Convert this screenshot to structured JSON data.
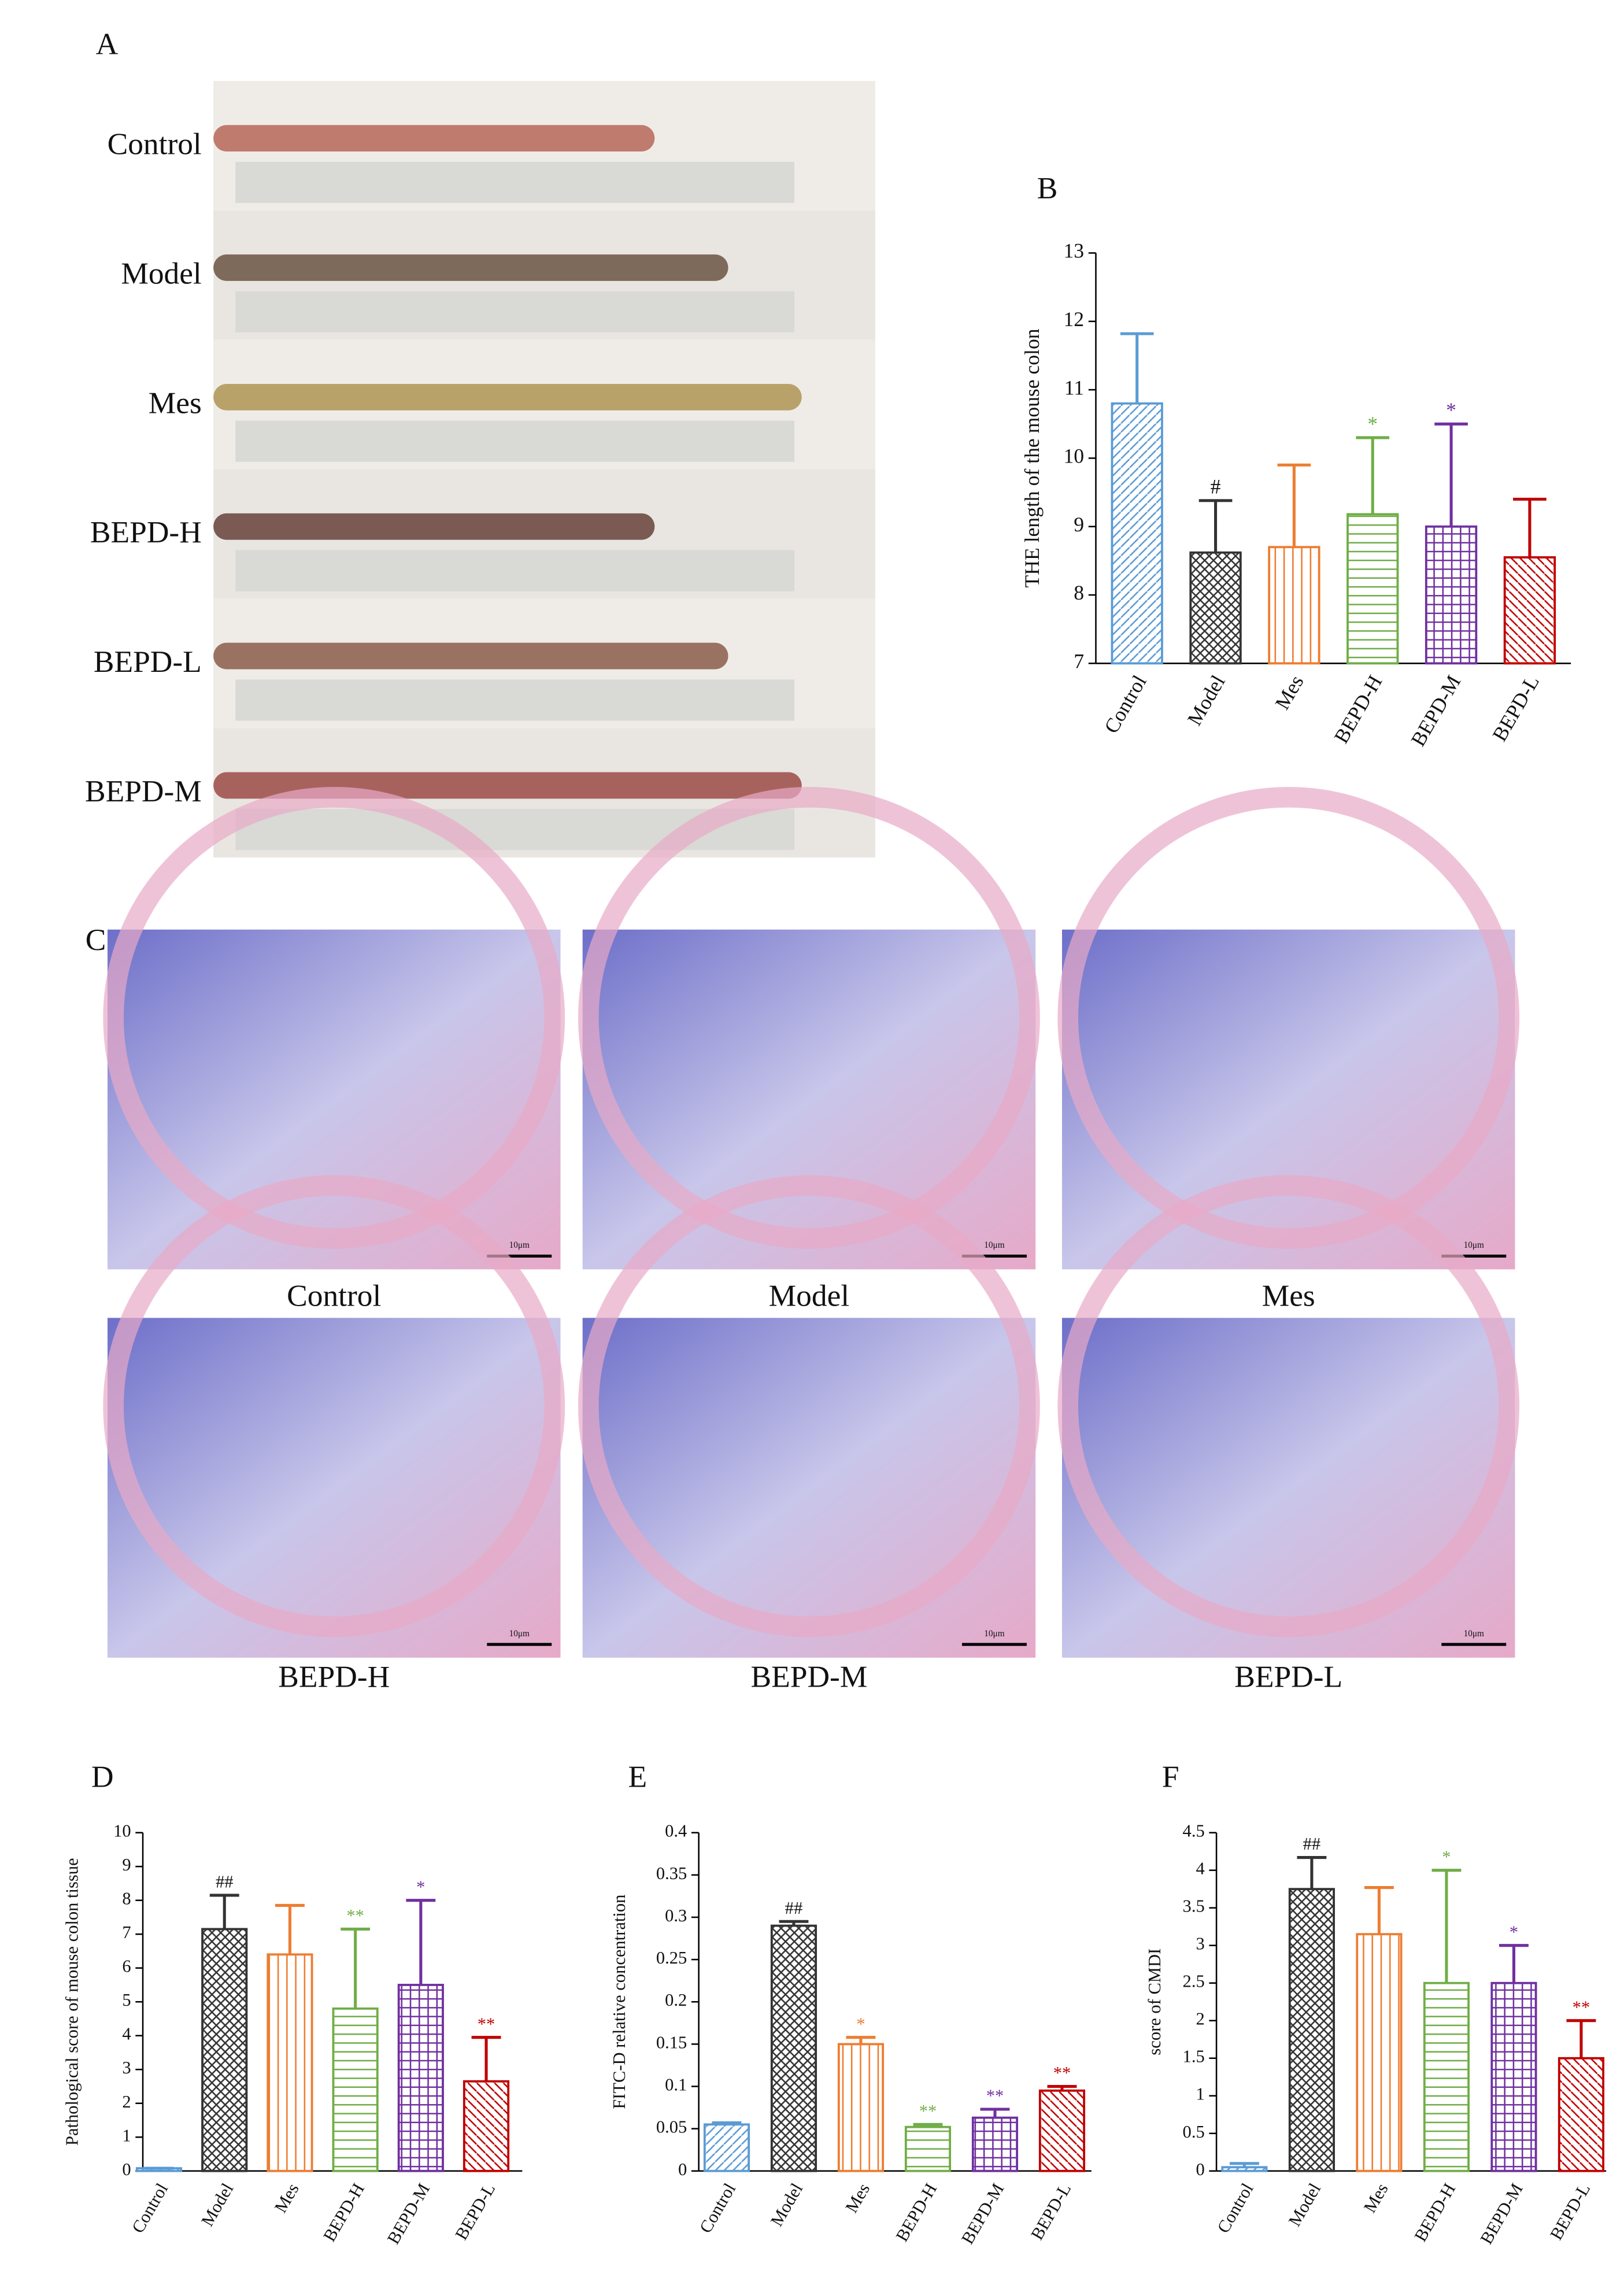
{
  "panels": {
    "A": {
      "label": "A",
      "rows": [
        "Control",
        "Model",
        "Mes",
        "BEPD-H",
        "BEPD-L",
        "BEPD-M"
      ]
    },
    "C": {
      "label": "C",
      "captions": [
        "Control",
        "Model",
        "Mes",
        "BEPD-H",
        "BEPD-M",
        "BEPD-L"
      ],
      "scale_bar": "10μm"
    }
  },
  "chart_data": [
    {
      "type": "bar",
      "panel_label": "B",
      "y_label": "THE length of the mouse colon",
      "categories": [
        "Control",
        "Model",
        "Mes",
        "BEPD-H",
        "BEPD-M",
        "BEPD-L"
      ],
      "values": [
        10.8,
        8.62,
        8.7,
        9.18,
        9.0,
        8.55
      ],
      "errors": [
        1.02,
        0.76,
        1.2,
        1.12,
        1.5,
        0.85
      ],
      "colors": [
        "#5b9bd5",
        "#333333",
        "#ed7d31",
        "#70ad47",
        "#7030a0",
        "#c00000"
      ],
      "significance": [
        null,
        "#",
        null,
        "*",
        "*",
        null
      ],
      "ylim": [
        7,
        13
      ],
      "yticks": [
        7,
        8,
        9,
        10,
        11,
        12,
        13
      ]
    },
    {
      "type": "bar",
      "panel_label": "D",
      "y_label": "Pathological score of mouse colon tissue",
      "categories": [
        "Control",
        "Model",
        "Mes",
        "BEPD-H",
        "BEPD-M",
        "BEPD-L"
      ],
      "values": [
        0.08,
        7.15,
        6.4,
        4.8,
        5.5,
        2.65
      ],
      "errors": [
        0,
        1.0,
        1.45,
        2.35,
        2.5,
        1.3
      ],
      "colors": [
        "#5b9bd5",
        "#333333",
        "#ed7d31",
        "#70ad47",
        "#7030a0",
        "#c00000"
      ],
      "significance": [
        null,
        "##",
        null,
        "**",
        "*",
        "**"
      ],
      "ylim": [
        0,
        10
      ],
      "yticks": [
        0,
        1,
        2,
        3,
        4,
        5,
        6,
        7,
        8,
        9,
        10
      ]
    },
    {
      "type": "bar",
      "panel_label": "E",
      "y_label": "FITC-D relative concentration",
      "categories": [
        "Control",
        "Model",
        "Mes",
        "BEPD-H",
        "BEPD-M",
        "BEPD-L"
      ],
      "values": [
        0.055,
        0.29,
        0.15,
        0.052,
        0.063,
        0.095
      ],
      "errors": [
        0.002,
        0.005,
        0.008,
        0.003,
        0.01,
        0.005
      ],
      "colors": [
        "#5b9bd5",
        "#333333",
        "#ed7d31",
        "#70ad47",
        "#7030a0",
        "#c00000"
      ],
      "significance": [
        null,
        "##",
        "*",
        "**",
        "**",
        "**"
      ],
      "ylim": [
        0,
        0.4
      ],
      "yticks": [
        0,
        0.05,
        0.1,
        0.15,
        0.2,
        0.25,
        0.3,
        0.35,
        0.4
      ]
    },
    {
      "type": "bar",
      "panel_label": "F",
      "y_label": "score of CMDI",
      "categories": [
        "Control",
        "Model",
        "Mes",
        "BEPD-H",
        "BEPD-M",
        "BEPD-L"
      ],
      "values": [
        0.05,
        3.75,
        3.15,
        2.5,
        2.5,
        1.5
      ],
      "errors": [
        0.05,
        0.42,
        0.62,
        1.5,
        0.5,
        0.5
      ],
      "colors": [
        "#5b9bd5",
        "#333333",
        "#ed7d31",
        "#70ad47",
        "#7030a0",
        "#c00000"
      ],
      "significance": [
        null,
        "##",
        null,
        "*",
        "*",
        "**"
      ],
      "ylim": [
        0,
        4.5
      ],
      "yticks": [
        0,
        0.5,
        1,
        1.5,
        2,
        2.5,
        3,
        3.5,
        4,
        4.5
      ]
    }
  ]
}
